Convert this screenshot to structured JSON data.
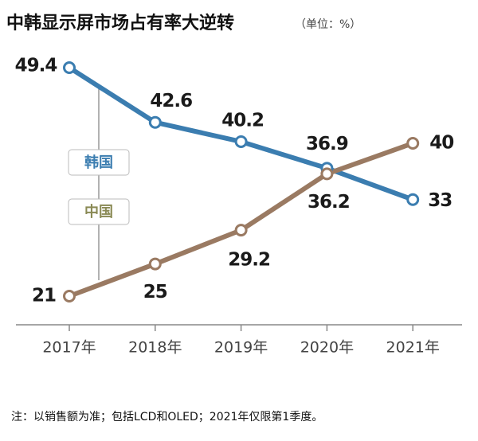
{
  "chart_data": {
    "type": "line",
    "title": "中韩显示屏市场占有率大逆转",
    "subtitle": "（单位：%）",
    "categories": [
      "2017年",
      "2018年",
      "2019年",
      "2020年",
      "2021年"
    ],
    "series": [
      {
        "name": "韩国",
        "color": "#3b7db0",
        "values": [
          49.4,
          42.6,
          40.2,
          36.9,
          33
        ]
      },
      {
        "name": "中国",
        "color": "#9a7a62",
        "values": [
          21,
          25,
          29.2,
          36.2,
          40
        ]
      }
    ],
    "note": "注：以销售额为准；包括LCD和OLED；2021年仅限第1季度。"
  }
}
